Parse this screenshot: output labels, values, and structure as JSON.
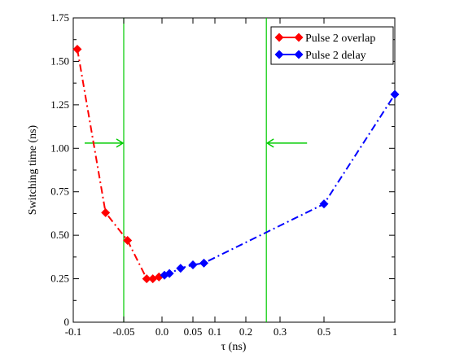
{
  "chart_data": {
    "type": "line",
    "xlabel": "τ (ns)",
    "ylabel": "Switching time (ns)",
    "ylim": [
      0,
      1.75
    ],
    "x_scale": "piecewise",
    "x_ticks": [
      "-0.1",
      "-0.05",
      "0.0",
      "0.05",
      "0.1",
      "0.2",
      "0.3",
      "0.5",
      "1"
    ],
    "y_ticks": [
      "0",
      "0.25",
      "0.50",
      "0.75",
      "1.00",
      "1.25",
      "1.50",
      "1.75"
    ],
    "grid": false,
    "legend_position": "top-right",
    "series": [
      {
        "name": "Pulse 2 overlap",
        "color": "#ff0000",
        "marker": "diamond",
        "line_style": "dash-dot",
        "x": [
          -0.096,
          -0.068,
          -0.045,
          -0.02,
          -0.012,
          -0.004
        ],
        "y": [
          1.57,
          0.63,
          0.47,
          0.25,
          0.25,
          0.26
        ]
      },
      {
        "name": "Pulse 2 delay",
        "color": "#0000ff",
        "marker": "diamond",
        "line_style": "dash-dot",
        "x": [
          0.004,
          0.012,
          0.03,
          0.05,
          0.075,
          0.5,
          1.0
        ],
        "y": [
          0.27,
          0.28,
          0.31,
          0.33,
          0.34,
          0.68,
          1.31
        ]
      }
    ],
    "annotations": {
      "vertical_lines": {
        "color": "#00cc00",
        "x": [
          -0.05,
          0.26
        ]
      },
      "arrows": {
        "color": "#00cc00",
        "y": 1.03
      }
    }
  }
}
